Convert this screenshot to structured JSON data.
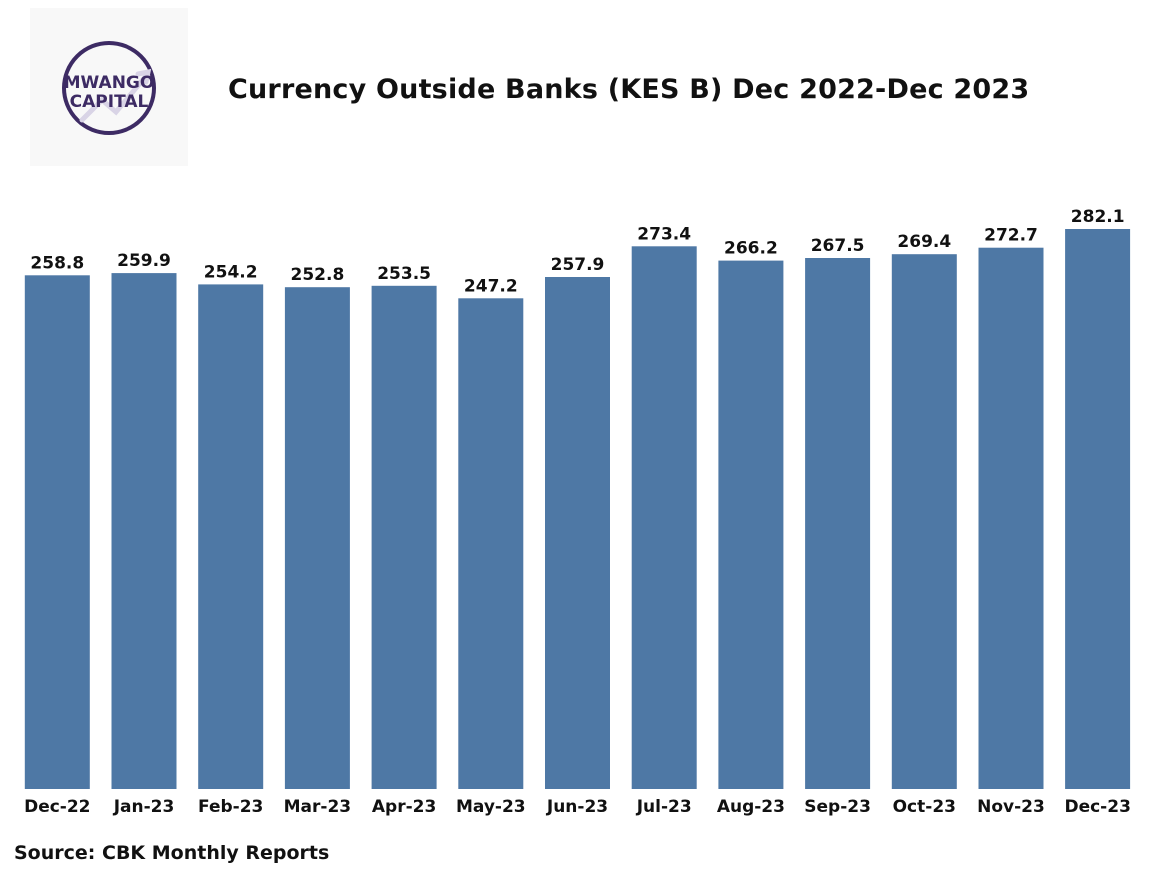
{
  "logo": {
    "line1": "MWANGO",
    "line2": "CAPITAL",
    "accent": "#3d2b64"
  },
  "title": "Currency Outside Banks (KES B) Dec 2022-Dec 2023",
  "source": "Source: CBK Monthly Reports",
  "colors": {
    "bar": "#4e78a5",
    "text": "#111111"
  },
  "chart_data": {
    "type": "bar",
    "title": "Currency Outside Banks (KES B) Dec 2022-Dec 2023",
    "xlabel": "",
    "ylabel": "",
    "categories": [
      "Dec-22",
      "Jan-23",
      "Feb-23",
      "Mar-23",
      "Apr-23",
      "May-23",
      "Jun-23",
      "Jul-23",
      "Aug-23",
      "Sep-23",
      "Oct-23",
      "Nov-23",
      "Dec-23"
    ],
    "values": [
      258.8,
      259.9,
      254.2,
      252.8,
      253.5,
      247.2,
      257.9,
      273.4,
      266.2,
      267.5,
      269.4,
      272.7,
      282.1
    ],
    "ylim": [
      0,
      282.1
    ],
    "grid": false,
    "legend": "none",
    "data_labels": true
  }
}
